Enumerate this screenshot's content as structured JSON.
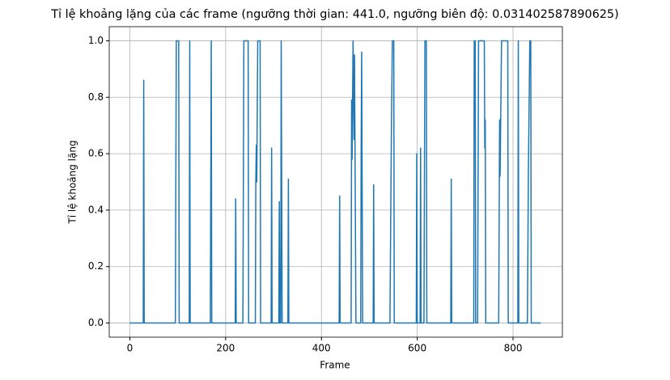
{
  "chart_data": {
    "type": "line",
    "title": "Tỉ lệ khoảng lặng của các frame (ngưỡng thời gian: 441.0, ngưỡng biên độ: 0.031402587890625)",
    "xlabel": "Frame",
    "ylabel": "Tỉ lệ khoảng lặng",
    "color": "#1f77b4",
    "x": [
      0,
      28,
      29,
      30,
      95,
      97,
      102,
      103,
      124,
      125,
      126,
      168,
      170,
      171,
      220,
      221,
      222,
      236,
      238,
      247,
      248,
      262,
      263,
      264,
      265,
      267,
      272,
      273,
      295,
      296,
      297,
      311,
      312,
      313,
      315,
      316,
      318,
      330,
      331,
      332,
      437,
      438,
      439,
      462,
      463,
      464,
      466,
      468,
      469,
      470,
      472,
      482,
      483,
      484,
      486,
      508,
      509,
      510,
      543,
      546,
      548,
      551,
      552,
      598,
      599,
      600,
      606,
      607,
      608,
      614,
      616,
      619,
      620,
      670,
      671,
      672,
      718,
      719,
      721,
      722,
      726,
      728,
      740,
      741,
      742,
      743,
      770,
      772,
      773,
      776,
      789,
      790,
      810,
      811,
      812,
      830,
      832,
      835,
      837,
      838,
      858
    ],
    "values": [
      0,
      0,
      0.86,
      0,
      0,
      1,
      1,
      0,
      0,
      1,
      0,
      0,
      1,
      0,
      0,
      0.44,
      0,
      0,
      1,
      1,
      0,
      0,
      0.5,
      0.63,
      0.5,
      1,
      1,
      0,
      0,
      0.62,
      0,
      0,
      0.43,
      0,
      0,
      1,
      0,
      0,
      0.51,
      0,
      0,
      0.45,
      0,
      0,
      0.79,
      0.58,
      1,
      0.65,
      0.95,
      0.65,
      0,
      0,
      0.64,
      0.96,
      0,
      0,
      0.49,
      0,
      0,
      0.67,
      1,
      1,
      0,
      0,
      0.6,
      0,
      0,
      0.62,
      0,
      0,
      1,
      1,
      0,
      0,
      0.51,
      0,
      0,
      1,
      1,
      0,
      0,
      1,
      1,
      0.62,
      0.72,
      0,
      0,
      0.72,
      0.52,
      1,
      1,
      0,
      0,
      1,
      0,
      0,
      0.53,
      1,
      1,
      0,
      0
    ],
    "xlim": [
      -43,
      903
    ],
    "xticks": [
      0,
      200,
      400,
      600,
      800
    ],
    "ylim": [
      -0.05,
      1.05
    ],
    "yticks": [
      {
        "value": 0,
        "label": "0.0"
      },
      {
        "value": 0.2,
        "label": "0.2"
      },
      {
        "value": 0.4,
        "label": "0.4"
      },
      {
        "value": 0.6,
        "label": "0.6"
      },
      {
        "value": 0.8,
        "label": "0.8"
      },
      {
        "value": 1,
        "label": "1.0"
      }
    ],
    "grid": true
  }
}
